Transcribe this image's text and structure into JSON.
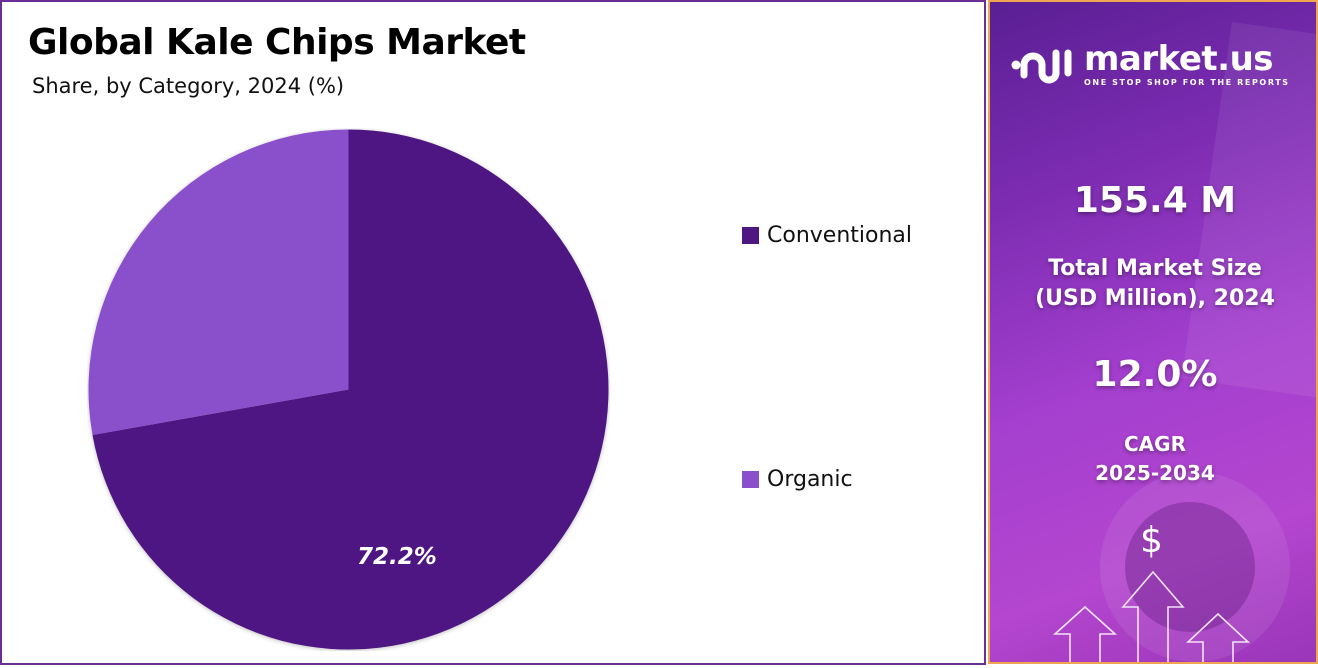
{
  "header": {
    "title": "Global Kale Chips Market",
    "subtitle": "Share, by Category, 2024 (%)"
  },
  "legend": [
    {
      "label": "Conventional",
      "color": "#4e1782"
    },
    {
      "label": "Organic",
      "color": "#8a4fca"
    }
  ],
  "pie_label": "72.2%",
  "brand": {
    "name": "market.us",
    "tagline": "ONE STOP SHOP FOR THE REPORTS"
  },
  "stats": {
    "market_size_value": "155.4 M",
    "market_size_label_line1": "Total Market Size",
    "market_size_label_line2": "(USD Million), 2024",
    "cagr_value": "12.0%",
    "cagr_label_line1": "CAGR",
    "cagr_label_line2": "2025-2034"
  },
  "icons": {
    "currency": "$"
  },
  "chart_data": {
    "type": "pie",
    "title": "Global Kale Chips Market",
    "subtitle": "Share, by Category, 2024 (%)",
    "categories": [
      "Conventional",
      "Organic"
    ],
    "values": [
      72.2,
      27.8
    ],
    "colors": [
      "#4e1782",
      "#8a4fca"
    ],
    "data_labels": [
      "72.2%",
      ""
    ],
    "legend_position": "right",
    "annotations": {
      "total_market_size_2024_usd_million": 155.4,
      "cagr_2025_2034_percent": 12.0
    }
  }
}
